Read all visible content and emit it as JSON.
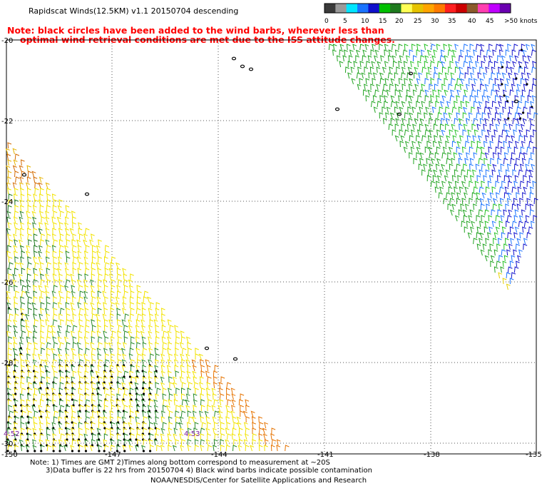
{
  "header": {
    "title": "Rapidscat Winds(12.5KM) v1.1 20150704 descending",
    "note_line1": "Note: black circles have been added to the wind barbs, wherever less than",
    "note_line2": "optimal wind retrieval conditions are met due to the ISS attitude changes."
  },
  "legend": {
    "labels": [
      "0",
      "5",
      "10",
      "15",
      "20",
      "25",
      "30",
      "35",
      "40",
      "45",
      ">50 knots"
    ],
    "colors": [
      "#3a3a3a",
      "#9a9a9a",
      "#00e5ff",
      "#1a73ff",
      "#1010cc",
      "#00c000",
      "#1e7a1e",
      "#ffff55",
      "#e6c300",
      "#ffa500",
      "#ff7a00",
      "#ff2020",
      "#cc0000",
      "#8b5a2b",
      "#ff3fb0",
      "#c000ff",
      "#6a00b0"
    ]
  },
  "axes": {
    "lat_labels": [
      "-20",
      "-22",
      "-24",
      "-26",
      "-28",
      "-30"
    ],
    "lon_labels": [
      "-150",
      "-147",
      "-144",
      "-141",
      "-138",
      "-135"
    ]
  },
  "time_labels": [
    "4:52",
    "4:53"
  ],
  "footer": {
    "line1": "Note: 1) Times are GMT 2)Times along bottom correspond to measurement at ~20S",
    "line2": "3)Data buffer is 22 hrs from 20150704 4) Black wind barbs indicate possible contamination",
    "credit": "NOAA/NESDIS/Center for Satellite Applications and Research"
  }
}
